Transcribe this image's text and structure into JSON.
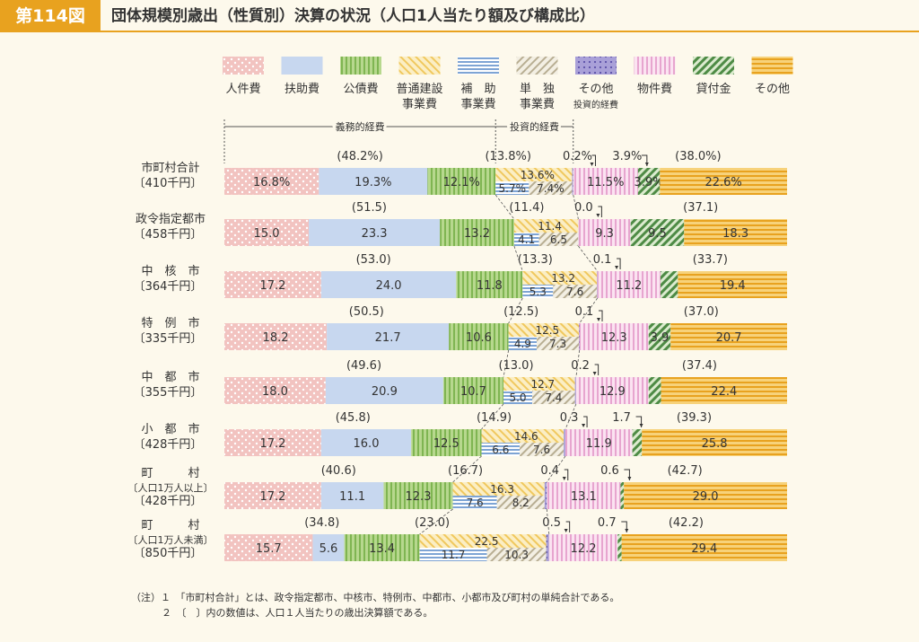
{
  "header": {
    "figure_no": "第114図",
    "title": "団体規模別歳出（性質別）決算の状況（人口1人当たり額及び構成比）"
  },
  "legend": {
    "items": [
      {
        "id": "jinken",
        "label": [
          "人件費"
        ],
        "color": "#f2c3c0",
        "pattern": "dots"
      },
      {
        "id": "fujo",
        "label": [
          "扶助費"
        ],
        "color": "#c7d7ef",
        "pattern": "solid"
      },
      {
        "id": "kosai",
        "label": [
          "公債費"
        ],
        "color": "#a9d07a",
        "pattern": "vlines"
      },
      {
        "id": "futsu",
        "label": [
          "普通建設",
          "事業費"
        ],
        "color": "#f7e2a0",
        "pattern": "diag"
      },
      {
        "id": "hojo",
        "label": [
          "補　助",
          "事業費"
        ],
        "color": "#b5cbe6",
        "pattern": "hlines"
      },
      {
        "id": "tandoku",
        "label": [
          "単　独",
          "事業費"
        ],
        "color": "#e4dcc6",
        "pattern": "diag2"
      },
      {
        "id": "other_inv",
        "label": [
          "その他",
          "投資的経費"
        ],
        "color": "#a9a0d8",
        "pattern": "dots2"
      },
      {
        "id": "butsu",
        "label": [
          "物件費"
        ],
        "color": "#f4cde6",
        "pattern": "vlines2"
      },
      {
        "id": "kashitsuke",
        "label": [
          "貸付金"
        ],
        "color": "#7fb36f",
        "pattern": "diag3"
      },
      {
        "id": "other",
        "label": [
          "その他"
        ],
        "color": "#f2b62d",
        "pattern": "hlines2"
      }
    ]
  },
  "brackets": {
    "gimu": "義務的経費",
    "toushi": "投資的経費"
  },
  "chart_data": {
    "type": "bar",
    "orientation": "horizontal-stacked-100",
    "series_order": [
      "人件費",
      "扶助費",
      "公債費",
      "普通建設事業費",
      "その他投資的経費",
      "物件費",
      "貸付金",
      "その他"
    ],
    "rows": [
      {
        "name": "市町村合計",
        "amount": "〔410千円〕",
        "values": {
          "jinken": "16.8%",
          "fujo": "19.3%",
          "kosai": "12.1%",
          "futsu": "13.6%",
          "hojo": "5.7%",
          "tandoku": "7.4%",
          "other_inv": "0.2%",
          "butsu": "11.5%",
          "kashitsuke": "3.9%",
          "other": "22.6%"
        },
        "nums": [
          16.8,
          19.3,
          12.1,
          13.6,
          0.2,
          11.5,
          3.9,
          22.6
        ],
        "gimu": "(48.2%)",
        "toushi": "(13.8%)",
        "other_inv_label": "0.2%",
        "kashitsuke_label": "3.9%",
        "others_total": "(38.0%)"
      },
      {
        "name": "政令指定都市",
        "amount": "〔458千円〕",
        "values": {
          "jinken": "15.0",
          "fujo": "23.3",
          "kosai": "13.2",
          "futsu": "11.4",
          "hojo": "4.1",
          "tandoku": "6.5",
          "other_inv": "0.0",
          "butsu": "9.3",
          "kashitsuke": "9.5",
          "other": "18.3"
        },
        "nums": [
          15.0,
          23.3,
          13.2,
          11.4,
          0.0,
          9.3,
          9.5,
          18.3
        ],
        "gimu": "(51.5)",
        "toushi": "(11.4)",
        "other_inv_label": "0.0",
        "kashitsuke_label": "",
        "others_total": "(37.1)"
      },
      {
        "name": "中　核　市",
        "amount": "〔364千円〕",
        "values": {
          "jinken": "17.2",
          "fujo": "24.0",
          "kosai": "11.8",
          "futsu": "13.2",
          "hojo": "5.3",
          "tandoku": "7.6",
          "other_inv": "0.1",
          "butsu": "11.2",
          "kashitsuke": "3.1",
          "other": "19.4"
        },
        "nums": [
          17.2,
          24.0,
          11.8,
          13.2,
          0.1,
          11.2,
          3.1,
          19.4
        ],
        "gimu": "(53.0)",
        "toushi": "(13.3)",
        "other_inv_label": "0.1",
        "kashitsuke_label": "",
        "others_total": "(33.7)"
      },
      {
        "name": "特　例　市",
        "amount": "〔335千円〕",
        "values": {
          "jinken": "18.2",
          "fujo": "21.7",
          "kosai": "10.6",
          "futsu": "12.5",
          "hojo": "4.9",
          "tandoku": "7.3",
          "other_inv": "0.1",
          "butsu": "12.3",
          "kashitsuke": "3.9",
          "other": "20.7"
        },
        "nums": [
          18.2,
          21.7,
          10.6,
          12.5,
          0.1,
          12.3,
          3.9,
          20.7
        ],
        "gimu": "(50.5)",
        "toushi": "(12.5)",
        "other_inv_label": "0.1",
        "kashitsuke_label": "",
        "others_total": "(37.0)"
      },
      {
        "name": "中　都　市",
        "amount": "〔355千円〕",
        "values": {
          "jinken": "18.0",
          "fujo": "20.9",
          "kosai": "10.7",
          "futsu": "12.7",
          "hojo": "5.0",
          "tandoku": "7.4",
          "other_inv": "0.2",
          "butsu": "12.9",
          "kashitsuke": "2.2",
          "other": "22.4"
        },
        "nums": [
          18.0,
          20.9,
          10.7,
          12.7,
          0.2,
          12.9,
          2.2,
          22.4
        ],
        "gimu": "(49.6)",
        "toushi": "(13.0)",
        "other_inv_label": "0.2",
        "kashitsuke_label": "",
        "others_total": "(37.4)"
      },
      {
        "name": "小　都　市",
        "amount": "〔428千円〕",
        "values": {
          "jinken": "17.2",
          "fujo": "16.0",
          "kosai": "12.5",
          "futsu": "14.6",
          "hojo": "6.6",
          "tandoku": "7.6",
          "other_inv": "0.3",
          "butsu": "11.9",
          "kashitsuke": "1.7",
          "other": "25.8"
        },
        "nums": [
          17.2,
          16.0,
          12.5,
          14.6,
          0.3,
          11.9,
          1.7,
          25.8
        ],
        "gimu": "(45.8)",
        "toushi": "(14.9)",
        "other_inv_label": "0.3",
        "kashitsuke_label": "1.7",
        "others_total": "(39.3)"
      },
      {
        "name": "町　　　村",
        "sub": "〔人口1万人以上〕",
        "amount": "〔428千円〕",
        "values": {
          "jinken": "17.2",
          "fujo": "11.1",
          "kosai": "12.3",
          "futsu": "16.3",
          "hojo": "7.6",
          "tandoku": "8.2",
          "other_inv": "0.4",
          "butsu": "13.1",
          "kashitsuke": "0.6",
          "other": "29.0"
        },
        "nums": [
          17.2,
          11.1,
          12.3,
          16.3,
          0.4,
          13.1,
          0.6,
          29.0
        ],
        "gimu": "(40.6)",
        "toushi": "(16.7)",
        "other_inv_label": "0.4",
        "kashitsuke_label": "0.6",
        "others_total": "(42.7)"
      },
      {
        "name": "町　　　村",
        "sub": "〔人口1万人未満〕",
        "amount": "〔850千円〕",
        "values": {
          "jinken": "15.7",
          "fujo": "5.6",
          "kosai": "13.4",
          "futsu": "22.5",
          "hojo": "11.7",
          "tandoku": "10.3",
          "other_inv": "0.5",
          "butsu": "12.2",
          "kashitsuke": "0.7",
          "other": "29.4"
        },
        "nums": [
          15.7,
          5.6,
          13.4,
          22.5,
          0.5,
          12.2,
          0.7,
          29.4
        ],
        "gimu": "(34.8)",
        "toushi": "(23.0)",
        "other_inv_label": "0.5",
        "kashitsuke_label": "0.7",
        "others_total": "(42.2)"
      }
    ]
  },
  "notes": [
    "（注）１　「市町村合計」とは、政令指定都市、中核市、特例市、中都市、小都市及び町村の単純合計である。",
    "２　〔　〕内の数値は、人口１人当たりの歳出決算額である。"
  ]
}
